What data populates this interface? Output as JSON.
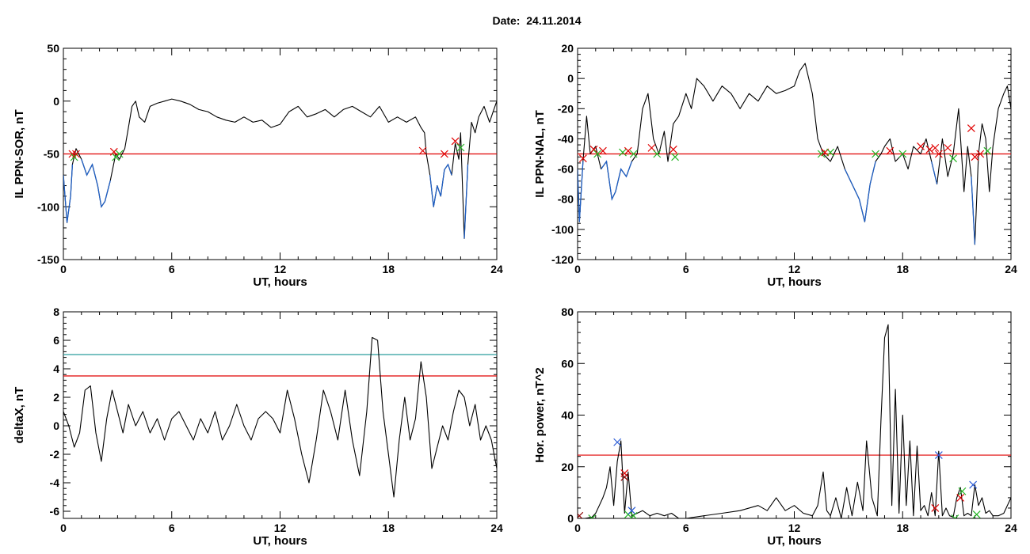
{
  "header": {
    "date_label": "Date:",
    "date_value": "24.11.2014"
  },
  "colors": {
    "trace": "#000000",
    "highlight": "#1f5fc4",
    "threshold_red": "#e00000",
    "threshold_teal": "#2a9d9d",
    "marker_red": "#e00000",
    "marker_green": "#22b422",
    "marker_blue": "#2a5bd7",
    "marker_dark_red": "#8b0000"
  },
  "chart_data": [
    {
      "id": "ppn-sor",
      "type": "line",
      "xlabel": "UT, hours",
      "ylabel": "IL PPN-SOR, nT",
      "xlim": [
        0,
        24
      ],
      "ylim": [
        -150,
        50
      ],
      "xticks": [
        0,
        6,
        12,
        18,
        24
      ],
      "yticks": [
        -150,
        -100,
        -50,
        0,
        50
      ],
      "threshold_lines": [
        {
          "y": -50,
          "color": "red"
        }
      ],
      "series": [
        {
          "x": [
            0,
            0.2,
            0.4,
            0.5,
            0.7,
            1.0,
            1.3,
            1.6,
            1.9,
            2.1,
            2.3,
            2.6,
            2.9,
            3.1,
            3.4,
            3.6,
            3.8,
            4.0,
            4.2,
            4.5,
            4.8,
            5.2,
            5.6,
            6.0,
            6.5,
            7.0,
            7.5,
            8.0,
            8.5,
            9.0,
            9.5,
            10.0,
            10.5,
            11.0,
            11.5,
            12.0,
            12.5,
            13.0,
            13.5,
            14.0,
            14.5,
            15.0,
            15.5,
            16.0,
            16.5,
            17.0,
            17.5,
            18.0,
            18.5,
            19.0,
            19.5,
            19.8,
            20.0,
            20.1,
            20.3,
            20.5,
            20.7,
            20.9,
            21.1,
            21.3,
            21.5,
            21.7,
            21.9,
            22.0,
            22.2,
            22.4,
            22.6,
            22.8,
            23.0,
            23.3,
            23.6,
            23.8,
            24.0
          ],
          "values": [
            -70,
            -115,
            -90,
            -60,
            -45,
            -55,
            -70,
            -60,
            -80,
            -100,
            -95,
            -75,
            -50,
            -55,
            -45,
            -25,
            -5,
            0,
            -15,
            -20,
            -5,
            -2,
            0,
            2,
            0,
            -3,
            -8,
            -10,
            -15,
            -18,
            -20,
            -15,
            -20,
            -18,
            -25,
            -22,
            -10,
            -5,
            -15,
            -12,
            -8,
            -15,
            -8,
            -5,
            -10,
            -15,
            -5,
            -20,
            -15,
            -20,
            -15,
            -25,
            -30,
            -50,
            -70,
            -100,
            -80,
            -90,
            -65,
            -60,
            -70,
            -40,
            -55,
            -30,
            -130,
            -60,
            -20,
            -30,
            -15,
            -5,
            -20,
            -10,
            0
          ]
        }
      ],
      "markers": [
        {
          "x": 0.5,
          "y": -50,
          "color": "red"
        },
        {
          "x": 0.6,
          "y": -53,
          "color": "green"
        },
        {
          "x": 0.7,
          "y": -50,
          "color": "red"
        },
        {
          "x": 2.8,
          "y": -48,
          "color": "red"
        },
        {
          "x": 2.9,
          "y": -53,
          "color": "green"
        },
        {
          "x": 3.1,
          "y": -50,
          "color": "green"
        },
        {
          "x": 19.9,
          "y": -47,
          "color": "red"
        },
        {
          "x": 21.1,
          "y": -50,
          "color": "red"
        },
        {
          "x": 21.7,
          "y": -38,
          "color": "red"
        },
        {
          "x": 22.0,
          "y": -44,
          "color": "green"
        }
      ]
    },
    {
      "id": "ppn-nal",
      "type": "line",
      "xlabel": "UT, hours",
      "ylabel": "IL PPN-NAL, nT",
      "xlim": [
        0,
        24
      ],
      "ylim": [
        -120,
        20
      ],
      "xticks": [
        0,
        6,
        12,
        18,
        24
      ],
      "yticks": [
        -120,
        -100,
        -80,
        -60,
        -40,
        -20,
        0,
        20
      ],
      "threshold_lines": [
        {
          "y": -50,
          "color": "red"
        }
      ],
      "series": [
        {
          "x": [
            0,
            0.1,
            0.3,
            0.5,
            0.7,
            1.0,
            1.3,
            1.6,
            1.9,
            2.1,
            2.4,
            2.7,
            3.0,
            3.3,
            3.6,
            3.9,
            4.2,
            4.5,
            4.8,
            5.0,
            5.3,
            5.6,
            6.0,
            6.3,
            6.6,
            7.0,
            7.5,
            8.0,
            8.5,
            9.0,
            9.5,
            10.0,
            10.5,
            11.0,
            11.5,
            12.0,
            12.3,
            12.6,
            13.0,
            13.3,
            13.6,
            14.0,
            14.4,
            14.8,
            15.2,
            15.6,
            15.9,
            16.2,
            16.5,
            16.8,
            17.0,
            17.3,
            17.6,
            18.0,
            18.3,
            18.6,
            19.0,
            19.3,
            19.6,
            19.9,
            20.2,
            20.5,
            20.8,
            21.1,
            21.4,
            21.6,
            21.8,
            22.0,
            22.2,
            22.4,
            22.6,
            22.8,
            23.0,
            23.3,
            23.6,
            23.8,
            24.0
          ],
          "values": [
            -60,
            -95,
            -55,
            -25,
            -50,
            -45,
            -60,
            -55,
            -80,
            -75,
            -60,
            -65,
            -55,
            -50,
            -20,
            -10,
            -40,
            -50,
            -35,
            -55,
            -30,
            -25,
            -10,
            -20,
            0,
            -5,
            -15,
            -5,
            -10,
            -20,
            -10,
            -15,
            -5,
            -10,
            -8,
            -5,
            5,
            10,
            -10,
            -40,
            -50,
            -55,
            -45,
            -60,
            -70,
            -80,
            -95,
            -70,
            -55,
            -50,
            -45,
            -40,
            -55,
            -50,
            -60,
            -45,
            -50,
            -40,
            -55,
            -70,
            -40,
            -65,
            -50,
            -20,
            -75,
            -45,
            -65,
            -110,
            -50,
            -30,
            -40,
            -75,
            -45,
            -20,
            -10,
            -5,
            -20
          ]
        }
      ],
      "markers": [
        {
          "x": 0.3,
          "y": -53,
          "color": "red"
        },
        {
          "x": 0.9,
          "y": -47,
          "color": "red"
        },
        {
          "x": 1.1,
          "y": -50,
          "color": "green"
        },
        {
          "x": 1.4,
          "y": -48,
          "color": "red"
        },
        {
          "x": 2.5,
          "y": -49,
          "color": "green"
        },
        {
          "x": 2.8,
          "y": -48,
          "color": "red"
        },
        {
          "x": 3.1,
          "y": -50,
          "color": "green"
        },
        {
          "x": 4.1,
          "y": -46,
          "color": "red"
        },
        {
          "x": 4.4,
          "y": -50,
          "color": "green"
        },
        {
          "x": 5.3,
          "y": -47,
          "color": "red"
        },
        {
          "x": 5.4,
          "y": -52,
          "color": "green"
        },
        {
          "x": 13.5,
          "y": -50,
          "color": "green"
        },
        {
          "x": 13.7,
          "y": -49,
          "color": "red"
        },
        {
          "x": 14.0,
          "y": -49,
          "color": "green"
        },
        {
          "x": 16.5,
          "y": -50,
          "color": "green"
        },
        {
          "x": 17.3,
          "y": -48,
          "color": "red"
        },
        {
          "x": 18.0,
          "y": -50,
          "color": "green"
        },
        {
          "x": 19.0,
          "y": -45,
          "color": "red"
        },
        {
          "x": 19.5,
          "y": -47,
          "color": "red"
        },
        {
          "x": 19.8,
          "y": -46,
          "color": "red"
        },
        {
          "x": 20.0,
          "y": -50,
          "color": "red"
        },
        {
          "x": 20.5,
          "y": -46,
          "color": "red"
        },
        {
          "x": 20.8,
          "y": -53,
          "color": "green"
        },
        {
          "x": 21.8,
          "y": -33,
          "color": "red"
        },
        {
          "x": 22.0,
          "y": -52,
          "color": "red"
        },
        {
          "x": 22.3,
          "y": -50,
          "color": "red"
        },
        {
          "x": 22.7,
          "y": -48,
          "color": "green"
        }
      ]
    },
    {
      "id": "deltax",
      "type": "line",
      "xlabel": "UT, hours",
      "ylabel": "deltaX, nT",
      "xlim": [
        0,
        24
      ],
      "ylim": [
        -6.5,
        8
      ],
      "xticks": [
        0,
        6,
        12,
        18,
        24
      ],
      "yticks": [
        -6,
        -4,
        -2,
        0,
        2,
        4,
        6,
        8
      ],
      "threshold_lines": [
        {
          "y": 5.0,
          "color": "teal"
        },
        {
          "y": 3.5,
          "color": "red"
        }
      ],
      "series": [
        {
          "x": [
            0,
            0.3,
            0.6,
            0.9,
            1.2,
            1.5,
            1.8,
            2.1,
            2.4,
            2.7,
            3.0,
            3.3,
            3.6,
            4.0,
            4.4,
            4.8,
            5.2,
            5.6,
            6.0,
            6.4,
            6.8,
            7.2,
            7.6,
            8.0,
            8.4,
            8.8,
            9.2,
            9.6,
            10.0,
            10.4,
            10.8,
            11.2,
            11.6,
            12.0,
            12.4,
            12.8,
            13.2,
            13.6,
            14.0,
            14.4,
            14.8,
            15.2,
            15.6,
            16.0,
            16.4,
            16.8,
            17.1,
            17.4,
            17.7,
            18.0,
            18.3,
            18.6,
            18.9,
            19.2,
            19.5,
            19.8,
            20.1,
            20.4,
            20.7,
            21.0,
            21.3,
            21.6,
            21.9,
            22.2,
            22.5,
            22.8,
            23.1,
            23.4,
            23.7,
            24.0
          ],
          "values": [
            1,
            0,
            -1.5,
            -0.5,
            2.5,
            2.8,
            -0.5,
            -2.5,
            0.5,
            2.5,
            1,
            -0.5,
            1.5,
            0,
            1,
            -0.5,
            0.5,
            -1,
            0.5,
            1,
            0,
            -1,
            0.5,
            -0.5,
            1,
            -1,
            0,
            1.5,
            0,
            -1,
            0.5,
            1,
            0.5,
            -0.5,
            2.5,
            0.5,
            -2,
            -4,
            -1,
            2.5,
            1,
            -1,
            2.5,
            -1,
            -3.5,
            1,
            6.2,
            6,
            1,
            -2,
            -5,
            -1,
            2,
            -1,
            0.5,
            4.5,
            2,
            -3,
            -1.5,
            0,
            -1,
            1,
            2.5,
            2,
            0,
            1.5,
            -1,
            0,
            -1,
            -3
          ]
        }
      ]
    },
    {
      "id": "hor-power",
      "type": "line",
      "xlabel": "UT, hours",
      "ylabel": "Hor. power, nT^2",
      "xlim": [
        0,
        24
      ],
      "ylim": [
        0,
        80
      ],
      "xticks": [
        0,
        6,
        12,
        18,
        24
      ],
      "yticks": [
        0,
        20,
        40,
        60,
        80
      ],
      "threshold_lines": [
        {
          "y": 24.5,
          "color": "red"
        }
      ],
      "series": [
        {
          "x": [
            0,
            0.4,
            0.8,
            1.0,
            1.2,
            1.4,
            1.6,
            1.8,
            2.0,
            2.2,
            2.4,
            2.6,
            2.8,
            3.0,
            3.3,
            3.6,
            4.0,
            4.4,
            4.8,
            5.2,
            5.6,
            6.0,
            7.0,
            8.0,
            9.0,
            10.0,
            10.5,
            11.0,
            11.5,
            12.0,
            12.5,
            13.0,
            13.3,
            13.6,
            13.8,
            14.0,
            14.3,
            14.6,
            14.9,
            15.2,
            15.5,
            15.8,
            16.0,
            16.3,
            16.6,
            16.8,
            17.0,
            17.2,
            17.4,
            17.6,
            17.8,
            18.0,
            18.2,
            18.4,
            18.6,
            18.8,
            19.0,
            19.2,
            19.4,
            19.6,
            19.8,
            20.0,
            20.2,
            20.4,
            20.6,
            20.8,
            21.0,
            21.2,
            21.4,
            21.6,
            21.8,
            22.0,
            22.2,
            22.4,
            22.6,
            22.8,
            23.0,
            23.3,
            23.6,
            24.0
          ],
          "values": [
            0,
            0,
            0.5,
            2,
            5,
            8,
            12,
            20,
            5,
            22,
            30,
            2,
            18,
            1,
            2,
            3,
            1,
            2,
            1,
            2,
            0,
            0,
            1,
            2,
            3,
            5,
            3,
            8,
            3,
            5,
            2,
            1,
            5,
            18,
            3,
            1,
            8,
            0,
            12,
            1,
            14,
            3,
            30,
            8,
            1,
            38,
            70,
            75,
            5,
            50,
            2,
            40,
            5,
            30,
            1,
            28,
            3,
            5,
            1,
            10,
            1,
            26,
            1,
            4,
            1,
            0.5,
            8,
            12,
            1,
            2,
            1,
            13,
            5,
            8,
            2,
            3,
            1,
            1,
            2,
            8
          ]
        }
      ],
      "markers": [
        {
          "x": 0.1,
          "y": 1,
          "color": "dark-red"
        },
        {
          "x": 0.8,
          "y": 0,
          "color": "green"
        },
        {
          "x": 2.2,
          "y": 29.5,
          "color": "blue"
        },
        {
          "x": 2.6,
          "y": 17.5,
          "color": "red"
        },
        {
          "x": 2.6,
          "y": 16,
          "color": "dark-red"
        },
        {
          "x": 2.8,
          "y": 1.5,
          "color": "green"
        },
        {
          "x": 3.0,
          "y": 3,
          "color": "blue"
        },
        {
          "x": 3.1,
          "y": 1,
          "color": "green"
        },
        {
          "x": 19.8,
          "y": 4,
          "color": "red"
        },
        {
          "x": 20.0,
          "y": 24.5,
          "color": "blue"
        },
        {
          "x": 20.9,
          "y": 0,
          "color": "green"
        },
        {
          "x": 21.2,
          "y": 8,
          "color": "red"
        },
        {
          "x": 21.3,
          "y": 10.5,
          "color": "green"
        },
        {
          "x": 21.9,
          "y": 13,
          "color": "blue"
        },
        {
          "x": 22.1,
          "y": 1.5,
          "color": "green"
        }
      ]
    }
  ]
}
